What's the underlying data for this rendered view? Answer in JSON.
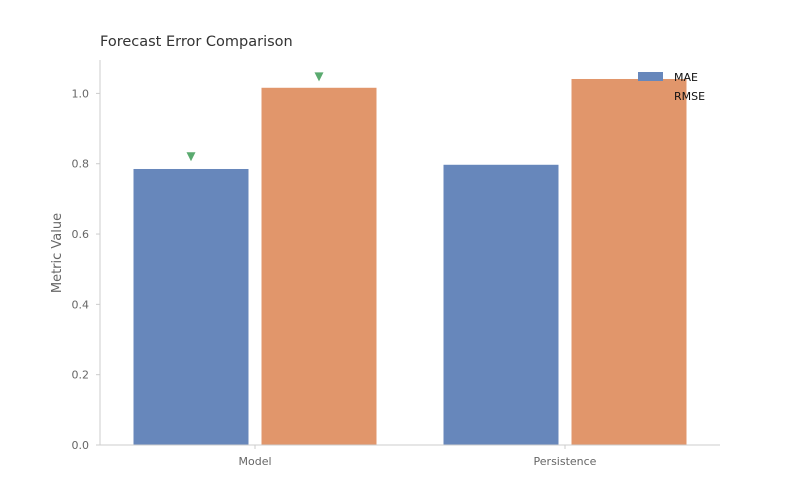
{
  "chart_data": {
    "type": "bar",
    "title": "Forecast Error Comparison",
    "xlabel": "",
    "ylabel": "Metric Value",
    "categories": [
      "Model",
      "Persistence"
    ],
    "series": [
      {
        "name": "MAE",
        "values": [
          0.785,
          0.797
        ],
        "color": "#6787BB"
      },
      {
        "name": "RMSE",
        "values": [
          1.016,
          1.041
        ],
        "color": "#E1966B"
      }
    ],
    "yticks": [
      0.0,
      0.2,
      0.4,
      0.6,
      0.8,
      1.0
    ],
    "ytick_labels": [
      "0.0",
      "0.2",
      "0.4",
      "0.6",
      "0.8",
      "1.0"
    ],
    "ylim": [
      0,
      1.095
    ],
    "grid": false,
    "legend_position": "top-right",
    "markers": {
      "shape": "triangle-down",
      "color": "#5AAA6F",
      "points": [
        {
          "category": "Model",
          "series": "MAE",
          "y": 0.82
        },
        {
          "category": "Model",
          "series": "RMSE",
          "y": 1.047
        }
      ]
    }
  }
}
